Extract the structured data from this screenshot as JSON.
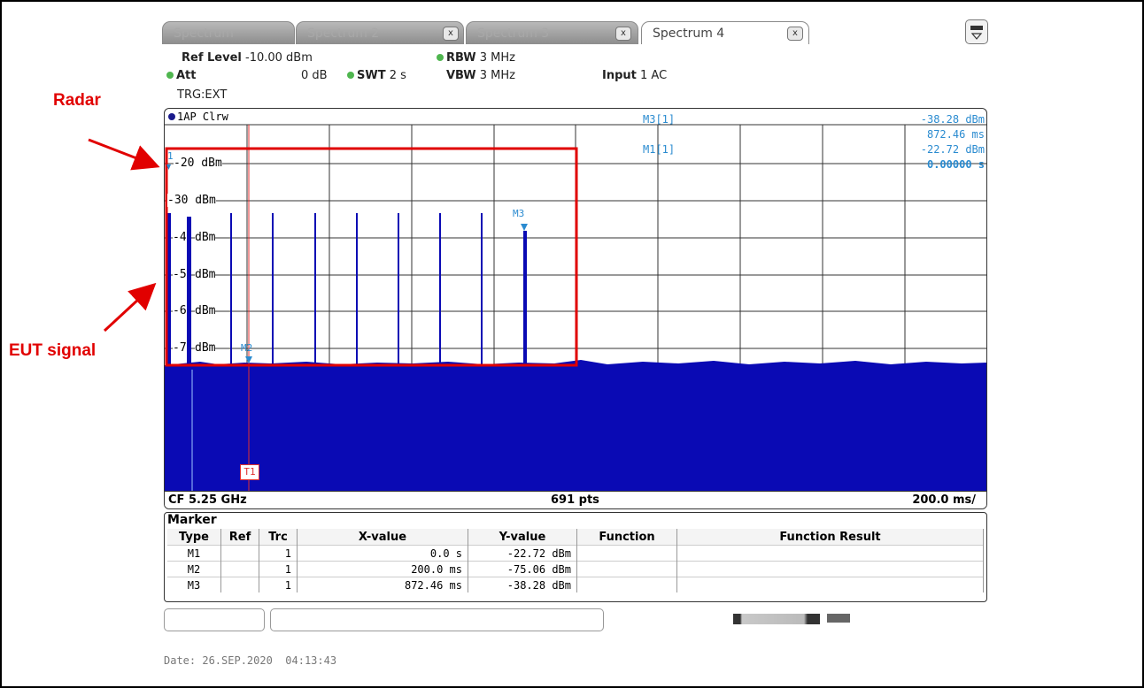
{
  "tabs": [
    {
      "label": "Spectrum",
      "closable": false,
      "active": false
    },
    {
      "label": "Spectrum 2",
      "closable": true,
      "active": false
    },
    {
      "label": "Spectrum 3",
      "closable": true,
      "active": false
    },
    {
      "label": "Spectrum 4",
      "closable": true,
      "active": true
    }
  ],
  "close_glyph": "x",
  "header": {
    "ref_level_label": "Ref Level",
    "ref_level_value": "-10.00 dBm",
    "att_label": "Att",
    "att_value": "0 dB",
    "swt_label": "SWT",
    "swt_value": "2 s",
    "rbw_label": "RBW",
    "rbw_value": "3 MHz",
    "vbw_label": "VBW",
    "vbw_value": "3 MHz",
    "input_label": "Input",
    "input_value": "1 AC",
    "trigger": "TRG:EXT"
  },
  "trace_label": "1AP Clrw",
  "y_labels": [
    "-20 dBm",
    "-30 dBm",
    "-4",
    "dBm",
    "-5",
    "dBm",
    "-6",
    "dBm",
    "-7",
    "dBm"
  ],
  "marker_readouts": [
    {
      "name": "M3[1]",
      "value": "-38.28 dBm",
      "time": "872.46 ms"
    },
    {
      "name": "M1[1]",
      "value": "-22.72 dBm",
      "time": "0.00000 s"
    }
  ],
  "plot_markers": {
    "m1": "1",
    "m2": "M2",
    "m3": "M3",
    "trigger": "T1"
  },
  "footer": {
    "cf": "CF 5.25 GHz",
    "pts": "691 pts",
    "div": "200.0 ms/"
  },
  "marker_table": {
    "title": "Marker",
    "columns": [
      "Type",
      "Ref",
      "Trc",
      "X-value",
      "Y-value",
      "Function",
      "Function Result"
    ],
    "rows": [
      [
        "M1",
        "",
        "1",
        "0.0 s",
        "-22.72 dBm",
        "",
        ""
      ],
      [
        "M2",
        "",
        "1",
        "200.0 ms",
        "-75.06 dBm",
        "",
        ""
      ],
      [
        "M3",
        "",
        "1",
        "872.46 ms",
        "-38.28 dBm",
        "",
        ""
      ]
    ]
  },
  "date_line": "Date: 26.SEP.2020  04:13:43",
  "annotations": {
    "radar": "Radar",
    "eut": "EUT signal"
  },
  "colors": {
    "trace": "#0a0ab4",
    "marker_text": "#2a8bd0",
    "annotation": "#e10000"
  }
}
